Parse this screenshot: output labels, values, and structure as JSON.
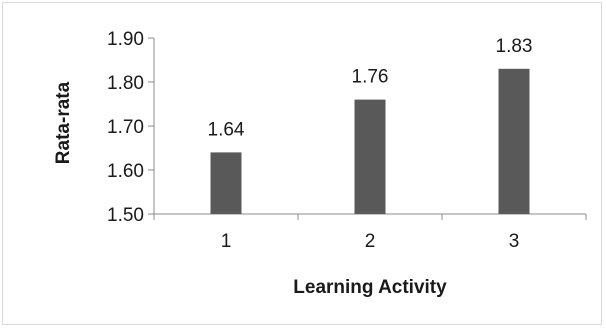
{
  "chart_data": {
    "type": "bar",
    "categories": [
      "1",
      "2",
      "3"
    ],
    "values": [
      1.64,
      1.76,
      1.83
    ],
    "data_labels": [
      "1.64",
      "1.76",
      "1.83"
    ],
    "xlabel": "Learning Activity",
    "ylabel": "Rata-rata",
    "ylim": [
      1.5,
      1.9
    ],
    "yticks": [
      "1.50",
      "1.60",
      "1.70",
      "1.80",
      "1.90"
    ],
    "grid": false,
    "legend": "none",
    "bar_color": "#595959"
  }
}
